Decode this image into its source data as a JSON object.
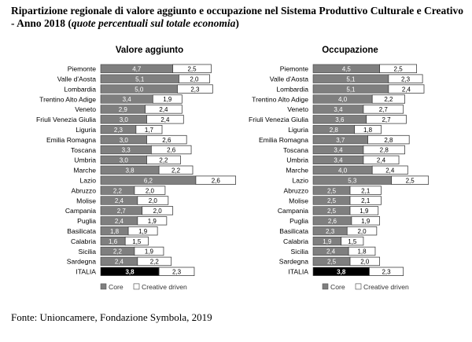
{
  "title_main": "Ripartizione regionale di valore aggiunto e occupazione nel Sistema Produttivo Culturale e Creativo  - Anno 2018 (",
  "title_italic": "quote percentuali sul totale economia",
  "title_end": ")",
  "source": "Fonte: Unioncamere, Fondazione Symbola, 2019",
  "colors": {
    "core": "#7f7f7f",
    "creative": "#ffffff",
    "italia_core": "#000000",
    "border": "#404040"
  },
  "chart_data": [
    {
      "type": "bar",
      "stacked": true,
      "orientation": "horizontal",
      "title": "Valore aggiunto",
      "categories": [
        "Piemonte",
        "Valle d'Aosta",
        "Lombardia",
        "Trentino Alto Adige",
        "Veneto",
        "Friuli Venezia Giulia",
        "Liguria",
        "Emilia Romagna",
        "Toscana",
        "Umbria",
        "Marche",
        "Lazio",
        "Abruzzo",
        "Molise",
        "Campania",
        "Puglia",
        "Basilicata",
        "Calabria",
        "Sicilia",
        "Sardegna",
        "ITALIA"
      ],
      "series": [
        {
          "name": "Core",
          "values": [
            "4,7",
            "5,1",
            "5,0",
            "3,4",
            "2,9",
            "3,0",
            "2,3",
            "3,0",
            "3,3",
            "3,0",
            "3,8",
            "6,2",
            "2,2",
            "2,4",
            "2,7",
            "2,4",
            "1,8",
            "1,6",
            "2,2",
            "2,4",
            "3,8"
          ]
        },
        {
          "name": "Creative driven",
          "values": [
            "2,5",
            "2,0",
            "2,3",
            "1,9",
            "2,4",
            "2,4",
            "1,7",
            "2,6",
            "2,6",
            "2,2",
            "2,2",
            "2,6",
            "2,0",
            "2,0",
            "2,0",
            "1,9",
            "1,9",
            "1,5",
            "1,9",
            "2,2",
            "2,3"
          ]
        }
      ],
      "legend": "bottom"
    },
    {
      "type": "bar",
      "stacked": true,
      "orientation": "horizontal",
      "title": "Occupazione",
      "categories": [
        "Piemonte",
        "Valle d'Aosta",
        "Lombardia",
        "Trentino Alto Adige",
        "Veneto",
        "Friuli Venezia Giulia",
        "Liguria",
        "Emilia Romagna",
        "Toscana",
        "Umbria",
        "Marche",
        "Lazio",
        "Abruzzo",
        "Molise",
        "Campania",
        "Puglia",
        "Basilicata",
        "Calabria",
        "Sicilia",
        "Sardegna",
        "ITALIA"
      ],
      "series": [
        {
          "name": "Core",
          "values": [
            "4,5",
            "5,1",
            "5,1",
            "4,0",
            "3,4",
            "3,6",
            "2,8",
            "3,7",
            "3,4",
            "3,4",
            "4,0",
            "5,3",
            "2,5",
            "2,5",
            "2,5",
            "2,6",
            "2,3",
            "1,9",
            "2,4",
            "2,5",
            "3,8"
          ]
        },
        {
          "name": "Creative driven",
          "values": [
            "2,5",
            "2,3",
            "2,4",
            "2,2",
            "2,7",
            "2,7",
            "1,8",
            "2,8",
            "2,8",
            "2,4",
            "2,4",
            "2,5",
            "2,1",
            "2,1",
            "1,9",
            "1,9",
            "2,0",
            "1,5",
            "1,8",
            "2,0",
            "2,3"
          ]
        }
      ],
      "legend": "bottom"
    }
  ]
}
